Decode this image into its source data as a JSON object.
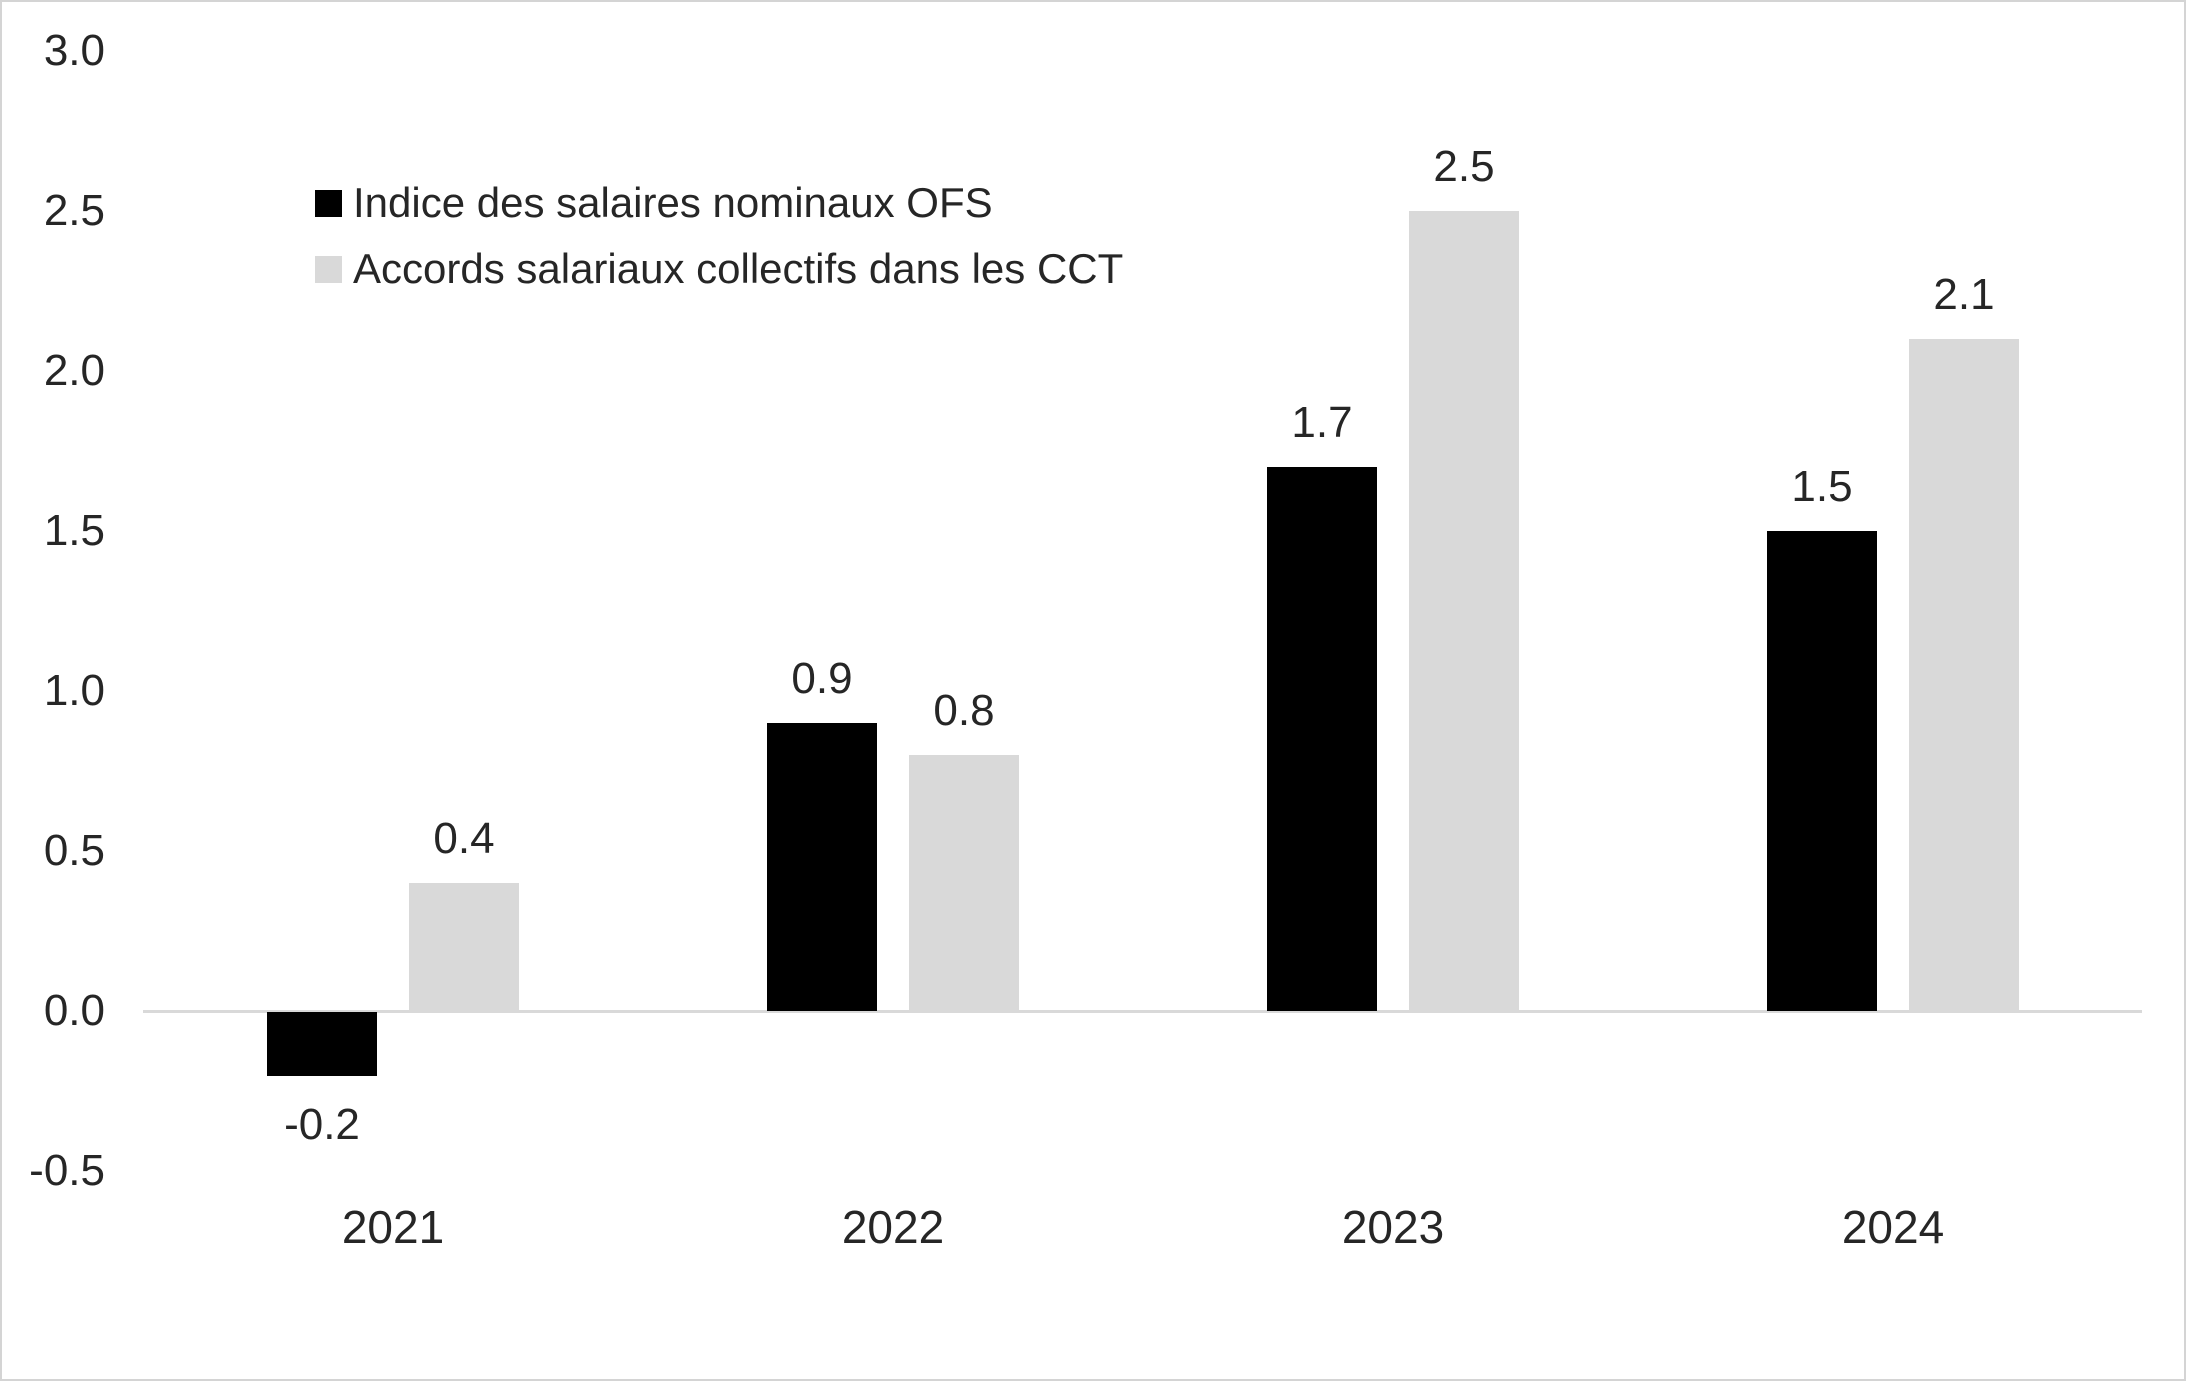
{
  "chart_data": {
    "type": "bar",
    "title": "",
    "xlabel": "",
    "ylabel": "",
    "grid": false,
    "legend_position": "top-left-inside",
    "categories": [
      "2021",
      "2022",
      "2023",
      "2024"
    ],
    "series": [
      {
        "name": "Indice des salaires nominaux OFS",
        "color": "#000000",
        "values": [
          -0.2,
          0.9,
          1.7,
          1.5
        ],
        "labels": [
          "-0.2",
          "0.9",
          "1.7",
          "1.5"
        ]
      },
      {
        "name": "Accords salariaux collectifs dans les CCT",
        "color": "#d9d9d9",
        "values": [
          0.4,
          0.8,
          2.5,
          2.1
        ],
        "labels": [
          "0.4",
          "0.8",
          "2.5",
          "2.1"
        ]
      }
    ],
    "y_axis": {
      "min": -0.5,
      "max": 3.0,
      "step": 0.5,
      "tick_labels": [
        "3.0",
        "2.5",
        "2.0",
        "1.5",
        "1.0",
        "0.5",
        "0.0",
        "-0.5"
      ]
    }
  },
  "colors": {
    "axis_line": "#d9d9d9",
    "text": "#262626",
    "frame_border": "#d4d4d4",
    "background": "#ffffff"
  }
}
